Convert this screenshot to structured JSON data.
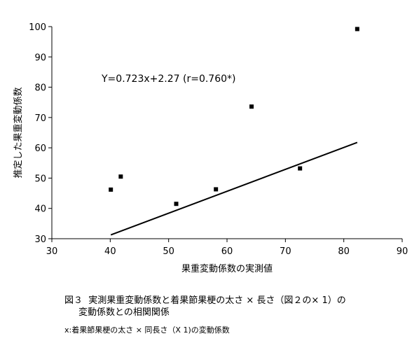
{
  "chart_data": {
    "type": "scatter",
    "title": "",
    "xlabel": "果重変動係数の実測値",
    "ylabel": "推定した果重変動係数",
    "xlim": [
      30,
      90
    ],
    "ylim": [
      30,
      100
    ],
    "xticks": [
      30,
      40,
      50,
      60,
      70,
      80,
      90
    ],
    "yticks": [
      30,
      40,
      50,
      60,
      70,
      80,
      90,
      100
    ],
    "grid": false,
    "legend": "none",
    "points": [
      {
        "x": 40.1,
        "y": 46.2
      },
      {
        "x": 41.8,
        "y": 50.5
      },
      {
        "x": 51.3,
        "y": 41.5
      },
      {
        "x": 58.1,
        "y": 46.3
      },
      {
        "x": 64.2,
        "y": 73.6
      },
      {
        "x": 72.5,
        "y": 53.2
      },
      {
        "x": 82.3,
        "y": 99.2
      }
    ],
    "trendline": {
      "slope": 0.723,
      "intercept": 2.27,
      "x_range": [
        40.1,
        82.3
      ],
      "label": "Y=0.723x+2.27 (r=0.760*)"
    },
    "colors": {
      "marker": "#000000",
      "line": "#000000",
      "axis": "#000000"
    }
  },
  "caption": {
    "line1": "図３  実測果重変動係数と着果節果梗の太さ × 長さ（図２の× 1）の",
    "line2": "変動係数との相関関係"
  },
  "footnote": "x:着果節果梗の太さ × 同長さ（X 1)の変動係数"
}
